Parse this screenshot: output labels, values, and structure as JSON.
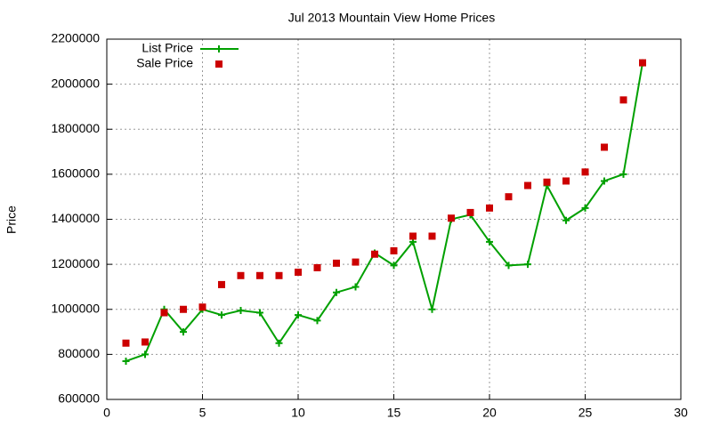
{
  "chart_data": {
    "type": "line",
    "title": "Jul 2013 Mountain View Home Prices",
    "y_label": "Price",
    "x": [
      1,
      2,
      3,
      4,
      5,
      6,
      7,
      8,
      9,
      10,
      11,
      12,
      13,
      14,
      15,
      16,
      17,
      18,
      19,
      20,
      21,
      22,
      23,
      24,
      25,
      26,
      27,
      28
    ],
    "series": [
      {
        "name": "List Price",
        "color": "#00a000",
        "style": "linespoints",
        "values": [
          770000,
          800000,
          1000000,
          900000,
          1000000,
          975000,
          995000,
          985000,
          850000,
          975000,
          950000,
          1075000,
          1100000,
          1250000,
          1195000,
          1300000,
          1000000,
          1400000,
          1420000,
          1300000,
          1195000,
          1200000,
          1550000,
          1395000,
          1450000,
          1570000,
          1600000,
          2095000
        ]
      },
      {
        "name": "Sale Price",
        "color": "#cc0000",
        "style": "points",
        "values": [
          850000,
          855000,
          985000,
          1000000,
          1010000,
          1110000,
          1150000,
          1150000,
          1150000,
          1165000,
          1185000,
          1205000,
          1210000,
          1245000,
          1260000,
          1325000,
          1325000,
          1405000,
          1430000,
          1450000,
          1500000,
          1550000,
          1565000,
          1570000,
          1610000,
          1720000,
          1930000,
          2095000
        ]
      }
    ],
    "xlim": [
      0,
      30
    ],
    "xticks": [
      0,
      5,
      10,
      15,
      20,
      25,
      30
    ],
    "ylim": [
      600000,
      2200000
    ],
    "yticks": [
      600000,
      800000,
      1000000,
      1200000,
      1400000,
      1600000,
      1800000,
      2000000,
      2200000
    ],
    "grid": true,
    "legend": "top-left"
  }
}
